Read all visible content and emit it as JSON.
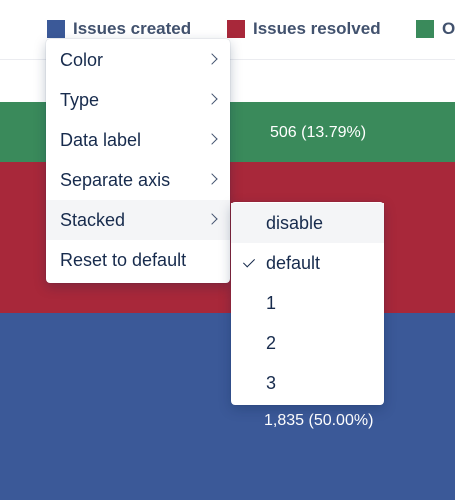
{
  "legend": {
    "items": [
      {
        "label": "Issues created",
        "color": "#3b5998"
      },
      {
        "label": "Issues resolved",
        "color": "#a8283a"
      },
      {
        "label": "O",
        "color": "#3a8a5b"
      }
    ]
  },
  "chart": {
    "bands": [
      {
        "color": "#3a8a5b",
        "label": "506 (13.79%)"
      },
      {
        "color": "#a8283a",
        "label": ""
      },
      {
        "color": "#3b5998",
        "label": "1,835 (50.00%)"
      }
    ]
  },
  "menu": {
    "items": [
      {
        "label": "Color",
        "has_submenu": true
      },
      {
        "label": "Type",
        "has_submenu": true
      },
      {
        "label": "Data label",
        "has_submenu": true
      },
      {
        "label": "Separate axis",
        "has_submenu": true
      },
      {
        "label": "Stacked",
        "has_submenu": true,
        "active": true
      },
      {
        "label": "Reset to default",
        "has_submenu": false
      }
    ]
  },
  "submenu": {
    "items": [
      {
        "label": "disable",
        "checked": false,
        "hover": true
      },
      {
        "label": "default",
        "checked": true
      },
      {
        "label": "1",
        "checked": false
      },
      {
        "label": "2",
        "checked": false
      },
      {
        "label": "3",
        "checked": false
      }
    ]
  }
}
